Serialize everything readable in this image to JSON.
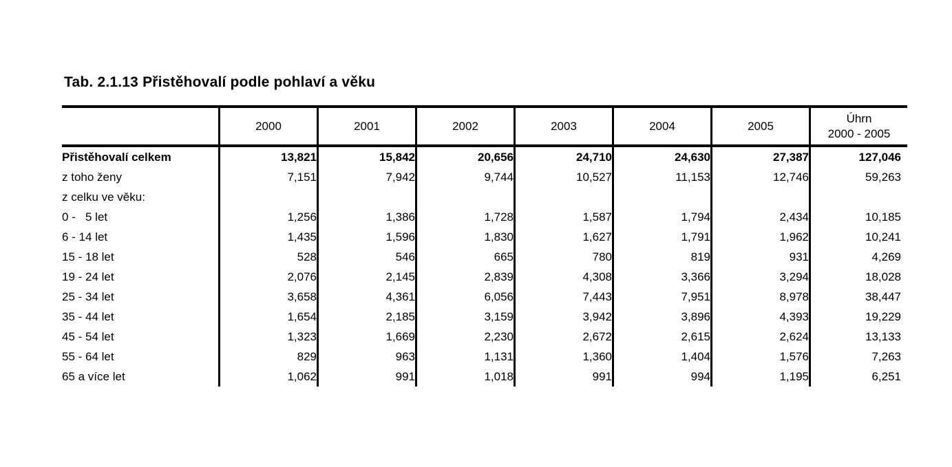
{
  "title": "Tab. 2.1.13 Přistěhovalí podle pohlaví a věku",
  "table": {
    "columns": [
      "2000",
      "2001",
      "2002",
      "2003",
      "2004",
      "2005"
    ],
    "total_column": {
      "line1": "Úhrn",
      "line2": "2000 - 2005"
    },
    "rows": [
      {
        "label": "Přistěhovalí celkem",
        "bold": true,
        "indent": 0,
        "values": [
          "13,821",
          "15,842",
          "20,656",
          "24,710",
          "24,630",
          "27,387",
          "127,046"
        ]
      },
      {
        "label": "z toho ženy",
        "bold": false,
        "indent": 1,
        "values": [
          "7,151",
          "7,942",
          "9,744",
          "10,527",
          "11,153",
          "12,746",
          "59,263"
        ]
      },
      {
        "label": "z celku ve věku:",
        "bold": false,
        "indent": 1,
        "values": [
          "",
          "",
          "",
          "",
          "",
          "",
          ""
        ]
      },
      {
        "label": "0 -   5 let",
        "bold": false,
        "indent": 2,
        "values": [
          "1,256",
          "1,386",
          "1,728",
          "1,587",
          "1,794",
          "2,434",
          "10,185"
        ]
      },
      {
        "label": "6 - 14 let",
        "bold": false,
        "indent": 2,
        "values": [
          "1,435",
          "1,596",
          "1,830",
          "1,627",
          "1,791",
          "1,962",
          "10,241"
        ]
      },
      {
        "label": "15 - 18 let",
        "bold": false,
        "indent": 2,
        "values": [
          "528",
          "546",
          "665",
          "780",
          "819",
          "931",
          "4,269"
        ]
      },
      {
        "label": "19 - 24 let",
        "bold": false,
        "indent": 2,
        "values": [
          "2,076",
          "2,145",
          "2,839",
          "4,308",
          "3,366",
          "3,294",
          "18,028"
        ]
      },
      {
        "label": "25 - 34 let",
        "bold": false,
        "indent": 2,
        "values": [
          "3,658",
          "4,361",
          "6,056",
          "7,443",
          "7,951",
          "8,978",
          "38,447"
        ]
      },
      {
        "label": "35 - 44 let",
        "bold": false,
        "indent": 2,
        "values": [
          "1,654",
          "2,185",
          "3,159",
          "3,942",
          "3,896",
          "4,393",
          "19,229"
        ]
      },
      {
        "label": "45 - 54 let",
        "bold": false,
        "indent": 2,
        "values": [
          "1,323",
          "1,669",
          "2,230",
          "2,672",
          "2,615",
          "2,624",
          "13,133"
        ]
      },
      {
        "label": "55 - 64 let",
        "bold": false,
        "indent": 2,
        "values": [
          "829",
          "963",
          "1,131",
          "1,360",
          "1,404",
          "1,576",
          "7,263"
        ]
      },
      {
        "label": "65 a více let",
        "bold": false,
        "indent": 2,
        "values": [
          "1,062",
          "991",
          "1,018",
          "991",
          "994",
          "1,195",
          "6,251"
        ]
      }
    ]
  }
}
